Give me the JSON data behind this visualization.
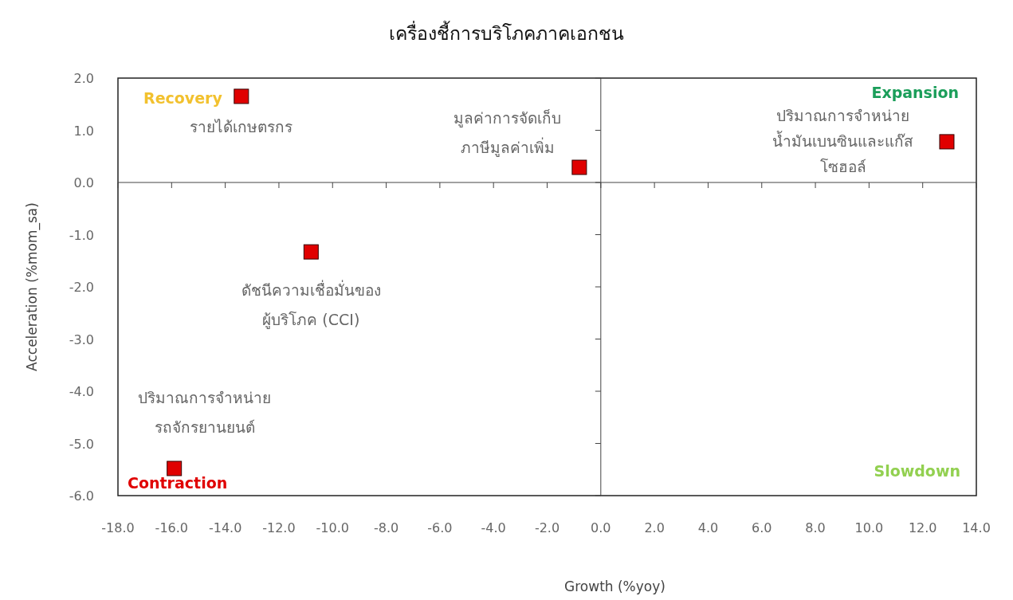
{
  "chart_data": {
    "type": "scatter",
    "title": "เครื่องชี้การบริโภคภาคเอกชน",
    "xlabel": "Growth (%yoy)",
    "ylabel": "Acceleration (%mom_sa)",
    "x": [
      -13.4,
      -0.8,
      12.9,
      -10.8,
      -15.9
    ],
    "series": [
      {
        "color": "#e00000",
        "values": [
          1.65,
          0.29,
          0.78,
          -1.33,
          -5.48
        ]
      }
    ],
    "marker": "square",
    "xlim": [
      -18,
      14
    ],
    "ylim": [
      -6,
      2
    ],
    "xticks": [
      {
        "value": -18,
        "label": "-18.0"
      },
      {
        "value": -16,
        "label": "-16.0"
      },
      {
        "value": -14,
        "label": "-14.0"
      },
      {
        "value": -12,
        "label": "-12.0"
      },
      {
        "value": -10,
        "label": "-10.0"
      },
      {
        "value": -8,
        "label": "-8.0"
      },
      {
        "value": -6,
        "label": "-6.0"
      },
      {
        "value": -4,
        "label": "-4.0"
      },
      {
        "value": -2,
        "label": "-2.0"
      },
      {
        "value": 0,
        "label": "0.0"
      },
      {
        "value": 2,
        "label": "2.0"
      },
      {
        "value": 4,
        "label": "4.0"
      },
      {
        "value": 6,
        "label": "6.0"
      },
      {
        "value": 8,
        "label": "8.0"
      },
      {
        "value": 10,
        "label": "10.0"
      },
      {
        "value": 12,
        "label": "12.0"
      },
      {
        "value": 14,
        "label": "14.0"
      }
    ],
    "yticks": [
      {
        "value": 2,
        "label": "2.0"
      },
      {
        "value": 1,
        "label": "1.0"
      },
      {
        "value": 0,
        "label": "0.0"
      },
      {
        "value": -1,
        "label": "-1.0"
      },
      {
        "value": -2,
        "label": "-2.0"
      },
      {
        "value": -3,
        "label": "-3.0"
      },
      {
        "value": -4,
        "label": "-4.0"
      },
      {
        "value": -5,
        "label": "-5.0"
      },
      {
        "value": -6,
        "label": "-6.0"
      }
    ],
    "annotations": [
      {
        "text": "รายได้เกษตรกร",
        "x": -13.4,
        "y": 1.65
      },
      {
        "text": "มูลค่าการจัดเก็บ\nภาษีมูลค่าเพิ่ม",
        "x": -0.8,
        "y": 0.29
      },
      {
        "text": "ปริมาณการจำหน่าย\nน้ำมันเบนซินและแก๊ส\nโซฮอล์",
        "x": 12.9,
        "y": 0.78
      },
      {
        "text": "ดัชนีความเชื่อมั่นของ\nผู้บริโภค (CCI)",
        "x": -10.8,
        "y": -1.33
      },
      {
        "text": "ปริมาณการจำหน่าย\nรถจักรยานยนต์",
        "x": -15.9,
        "y": -5.48
      },
      "Recovery",
      "Expansion",
      "Slowdown",
      "Contraction"
    ]
  }
}
